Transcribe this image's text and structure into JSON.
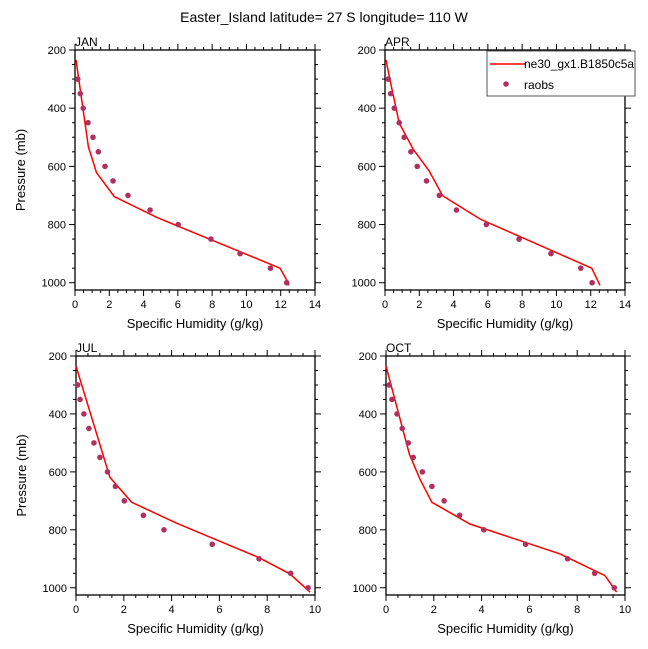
{
  "chart_data": {
    "title": "Easter_Island  latitude= 27 S longitude= 110 W",
    "type": "line",
    "legend": {
      "placement": "top-right of APR panel",
      "entries": [
        {
          "label": "ne30_gx1.B1850c5a",
          "style": "line",
          "color": "#ff0000"
        },
        {
          "label": "raobs",
          "style": "marker",
          "color": "#b03060"
        }
      ]
    },
    "panels": [
      {
        "name": "JAN",
        "xlabel": "Specific Humidity (g/kg)",
        "ylabel": "Pressure (mb)",
        "xlim": [
          0,
          14
        ],
        "xticks": [
          0,
          2,
          4,
          6,
          8,
          10,
          12,
          14
        ],
        "ylim": [
          200,
          1025
        ],
        "yticks": [
          200,
          400,
          600,
          800,
          1000
        ],
        "model": {
          "x": [
            0.06,
            0.78,
            1.26,
            2.29,
            4.76,
            11.96,
            12.31,
            12.47
          ],
          "p": [
            234,
            533,
            622,
            704,
            775,
            950,
            986,
            1009
          ]
        },
        "raobs": {
          "x": [
            0.16,
            0.31,
            0.48,
            0.76,
            1.05,
            1.36,
            1.75,
            2.22,
            3.09,
            4.38,
            6.02,
            7.93,
            9.63,
            11.4,
            12.35
          ],
          "p": [
            300,
            350,
            400,
            450,
            500,
            550,
            600,
            650,
            700,
            750,
            800,
            850,
            900,
            950,
            1000
          ]
        }
      },
      {
        "name": "APR",
        "xlabel": "Specific Humidity (g/kg)",
        "ylabel": "",
        "xlim": [
          0,
          14
        ],
        "xticks": [
          0,
          2,
          4,
          6,
          8,
          10,
          12,
          14
        ],
        "ylim": [
          200,
          1025
        ],
        "yticks": [
          200,
          400,
          600,
          800,
          1000
        ],
        "model": {
          "x": [
            0.06,
            0.29,
            0.83,
            1.65,
            2.58,
            3.36,
            5.54,
            12.06,
            12.54
          ],
          "p": [
            234,
            303,
            451,
            542,
            616,
            701,
            781,
            950,
            1009
          ]
        },
        "raobs": {
          "x": [
            0.19,
            0.33,
            0.54,
            0.83,
            1.12,
            1.51,
            1.88,
            2.42,
            3.17,
            4.17,
            5.91,
            7.82,
            9.68,
            11.42,
            12.08
          ],
          "p": [
            300,
            350,
            400,
            450,
            500,
            550,
            600,
            650,
            700,
            750,
            800,
            850,
            900,
            950,
            1000
          ]
        }
      },
      {
        "name": "JUL",
        "xlabel": "Specific Humidity (g/kg)",
        "ylabel": "Pressure (mb)",
        "xlim": [
          0,
          10
        ],
        "xticks": [
          0,
          2,
          4,
          6,
          8,
          10
        ],
        "ylim": [
          200,
          1025
        ],
        "yticks": [
          200,
          400,
          600,
          800,
          1000
        ],
        "model": {
          "x": [
            0.0,
            1.42,
            2.33,
            4.21,
            7.63,
            8.95,
            9.79
          ],
          "p": [
            235,
            619,
            705,
            777,
            895,
            952,
            1015
          ]
        },
        "raobs": {
          "x": [
            0.07,
            0.17,
            0.33,
            0.54,
            0.75,
            1.0,
            1.32,
            1.65,
            2.02,
            2.82,
            3.68,
            5.7,
            7.66,
            8.98,
            9.71
          ],
          "p": [
            300,
            350,
            400,
            450,
            500,
            550,
            600,
            650,
            700,
            750,
            800,
            850,
            900,
            950,
            1000
          ]
        }
      },
      {
        "name": "OCT",
        "xlabel": "Specific Humidity (g/kg)",
        "ylabel": "",
        "xlim": [
          0,
          10
        ],
        "xticks": [
          0,
          2,
          4,
          6,
          8,
          10
        ],
        "ylim": [
          200,
          1025
        ],
        "yticks": [
          200,
          400,
          600,
          800,
          1000
        ],
        "model": {
          "x": [
            0.0,
            0.98,
            1.42,
            1.92,
            3.51,
            7.28,
            9.16,
            9.65
          ],
          "p": [
            235,
            539,
            625,
            705,
            780,
            883,
            958,
            1015
          ]
        },
        "raobs": {
          "x": [
            0.13,
            0.25,
            0.46,
            0.68,
            0.93,
            1.14,
            1.52,
            1.92,
            2.43,
            3.08,
            4.09,
            5.84,
            7.6,
            8.73,
            9.55
          ],
          "p": [
            300,
            350,
            400,
            450,
            500,
            550,
            600,
            650,
            700,
            750,
            800,
            850,
            900,
            950,
            1000
          ]
        }
      }
    ]
  }
}
